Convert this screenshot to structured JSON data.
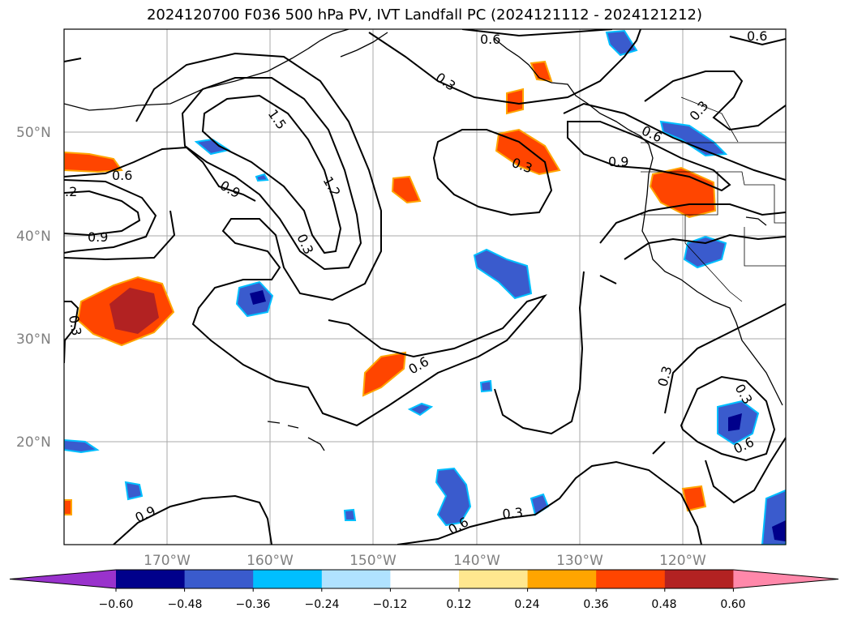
{
  "title": "2024120700 F036 500 hPa PV, IVT Landfall PC (2024121112 - 2024121212)",
  "map": {
    "lat_labels": [
      "50°N",
      "40°N",
      "30°N",
      "20°N"
    ],
    "lon_labels": [
      "170°W",
      "160°W",
      "150°W",
      "140°W",
      "130°W",
      "120°W"
    ],
    "contour_labels": [
      "0.6",
      "0.6",
      "0.3",
      "1.5",
      "0.6",
      "1.2",
      ".2",
      "0.9",
      "0.9",
      "0.3",
      "0.3",
      "0.6",
      "0.9",
      "0.3",
      "0.3",
      "0.6",
      "0.3",
      "0.3",
      "0.6",
      "0.3"
    ]
  },
  "colorbar": {
    "tick_labels": [
      "−0.60",
      "−0.48",
      "−0.36",
      "−0.24",
      "−0.12",
      "0.12",
      "0.24",
      "0.36",
      "0.48",
      "0.60"
    ],
    "colors": [
      "#9932cc",
      "#00008b",
      "#3a5bcd",
      "#00bfff",
      "#b0e2ff",
      "#ffffff",
      "#ffe78f",
      "#ffa500",
      "#ff4500",
      "#b22222",
      "#ff88aa"
    ]
  }
}
